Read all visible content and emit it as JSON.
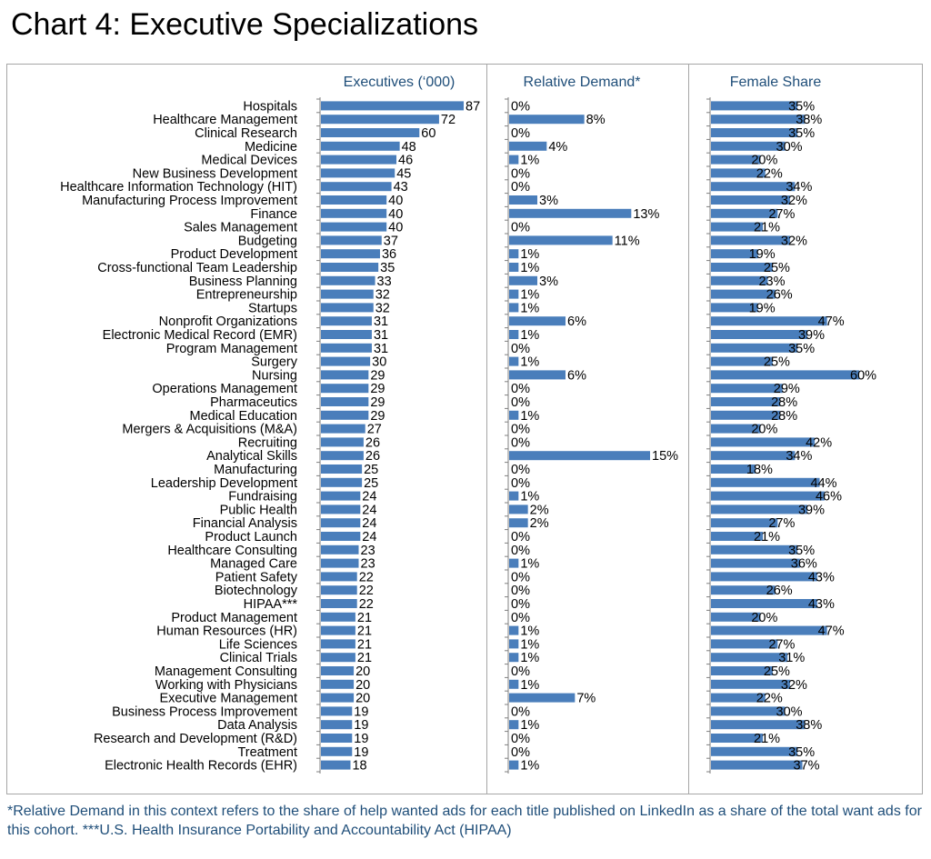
{
  "title": "Chart 4: Executive Specializations",
  "footnote": "*Relative Demand in this context refers to the share of help wanted ads for each title published on LinkedIn as a share of the total want ads for this cohort. ***U.S. Health Insurance Portability and Accountability Act (HIPAA)",
  "colors": {
    "bar": "#4a7ebb",
    "header": "#1f4e79",
    "axis": "#7f7f7f",
    "frame": "#a6a6a6"
  },
  "chart_data": {
    "type": "bar",
    "orientation": "horizontal",
    "categories": [
      "Hospitals",
      "Healthcare Management",
      "Clinical Research",
      "Medicine",
      "Medical Devices",
      "New Business Development",
      "Healthcare Information Technology (HIT)",
      "Manufacturing Process Improvement",
      "Finance",
      "Sales Management",
      "Budgeting",
      "Product Development",
      "Cross-functional Team Leadership",
      "Business Planning",
      "Entrepreneurship",
      "Startups",
      "Nonprofit Organizations",
      "Electronic Medical Record (EMR)",
      "Program Management",
      "Surgery",
      "Nursing",
      "Operations Management",
      "Pharmaceutics",
      "Medical Education",
      "Mergers & Acquisitions (M&A)",
      "Recruiting",
      "Analytical Skills",
      "Manufacturing",
      "Leadership Development",
      "Fundraising",
      "Public Health",
      "Financial Analysis",
      "Product Launch",
      "Healthcare Consulting",
      "Managed Care",
      "Patient Safety",
      "Biotechnology",
      "HIPAA***",
      "Product Management",
      "Human Resources (HR)",
      "Life Sciences",
      "Clinical Trials",
      "Management Consulting",
      "Working with Physicians",
      "Executive Management",
      "Business Process Improvement",
      "Data Analysis",
      "Research and Development (R&D)",
      "Treatment",
      "Electronic Health Records (EHR)"
    ],
    "series": [
      {
        "name": "Executives ('000)",
        "header": "Executives (‘000)",
        "values": [
          87,
          72,
          60,
          48,
          46,
          45,
          43,
          40,
          40,
          40,
          37,
          36,
          35,
          33,
          32,
          32,
          31,
          31,
          31,
          30,
          29,
          29,
          29,
          29,
          27,
          26,
          26,
          25,
          25,
          24,
          24,
          24,
          24,
          23,
          23,
          22,
          22,
          22,
          21,
          21,
          21,
          21,
          20,
          20,
          20,
          19,
          19,
          19,
          19,
          18
        ],
        "labels": [
          "87",
          "72",
          "60",
          "48",
          "46",
          "45",
          "43",
          "40",
          "40",
          "40",
          "37",
          "36",
          "35",
          "33",
          "32",
          "32",
          "31",
          "31",
          "31",
          "30",
          "29",
          "29",
          "29",
          "29",
          "27",
          "26",
          "26",
          "25",
          "25",
          "24",
          "24",
          "24",
          "24",
          "23",
          "23",
          "22",
          "22",
          "22",
          "21",
          "21",
          "21",
          "21",
          "20",
          "20",
          "20",
          "19",
          "19",
          "19",
          "19",
          "18"
        ],
        "xlim": [
          0,
          87
        ]
      },
      {
        "name": "Relative Demand*",
        "header": "Relative Demand*",
        "values": [
          0,
          8,
          0,
          4,
          1,
          0,
          0,
          3,
          13,
          0,
          11,
          1,
          1,
          3,
          1,
          1,
          6,
          1,
          0,
          1,
          6,
          0,
          0,
          1,
          0,
          0,
          15,
          0,
          0,
          1,
          2,
          2,
          0,
          0,
          1,
          0,
          0,
          0,
          0,
          1,
          1,
          1,
          0,
          1,
          7,
          0,
          1,
          0,
          0,
          1
        ],
        "labels": [
          "0%",
          "8%",
          "0%",
          "4%",
          "1%",
          "0%",
          "0%",
          "3%",
          "13%",
          "0%",
          "11%",
          "1%",
          "1%",
          "3%",
          "1%",
          "1%",
          "6%",
          "1%",
          "0%",
          "1%",
          "6%",
          "0%",
          "0%",
          "1%",
          "0%",
          "0%",
          "15%",
          "0%",
          "0%",
          "1%",
          "2%",
          "2%",
          "0%",
          "0%",
          "1%",
          "0%",
          "0%",
          "0%",
          "0%",
          "1%",
          "1%",
          "1%",
          "0%",
          "1%",
          "7%",
          "0%",
          "1%",
          "0%",
          "0%",
          "1%"
        ],
        "unit": "%",
        "xlim": [
          0,
          15
        ]
      },
      {
        "name": "Female Share",
        "header": "Female Share",
        "values": [
          35,
          38,
          35,
          30,
          20,
          22,
          34,
          32,
          27,
          21,
          32,
          19,
          25,
          23,
          26,
          19,
          47,
          39,
          35,
          25,
          60,
          29,
          28,
          28,
          20,
          42,
          34,
          18,
          44,
          46,
          39,
          27,
          21,
          35,
          36,
          43,
          26,
          43,
          20,
          47,
          27,
          31,
          25,
          32,
          22,
          30,
          38,
          21,
          35,
          37
        ],
        "labels": [
          "35%",
          "38%",
          "35%",
          "30%",
          "20%",
          "22%",
          "34%",
          "32%",
          "27%",
          "21%",
          "32%",
          "19%",
          "25%",
          "23%",
          "26%",
          "19%",
          "47%",
          "39%",
          "35%",
          "25%",
          "60%",
          "29%",
          "28%",
          "28%",
          "20%",
          "42%",
          "34%",
          "18%",
          "44%",
          "46%",
          "39%",
          "27%",
          "21%",
          "35%",
          "36%",
          "43%",
          "26%",
          "43%",
          "20%",
          "47%",
          "27%",
          "31%",
          "25%",
          "32%",
          "22%",
          "30%",
          "38%",
          "21%",
          "35%",
          "37%"
        ],
        "unit": "%",
        "xlim": [
          0,
          60
        ]
      }
    ],
    "grid": false,
    "legend": "none"
  }
}
